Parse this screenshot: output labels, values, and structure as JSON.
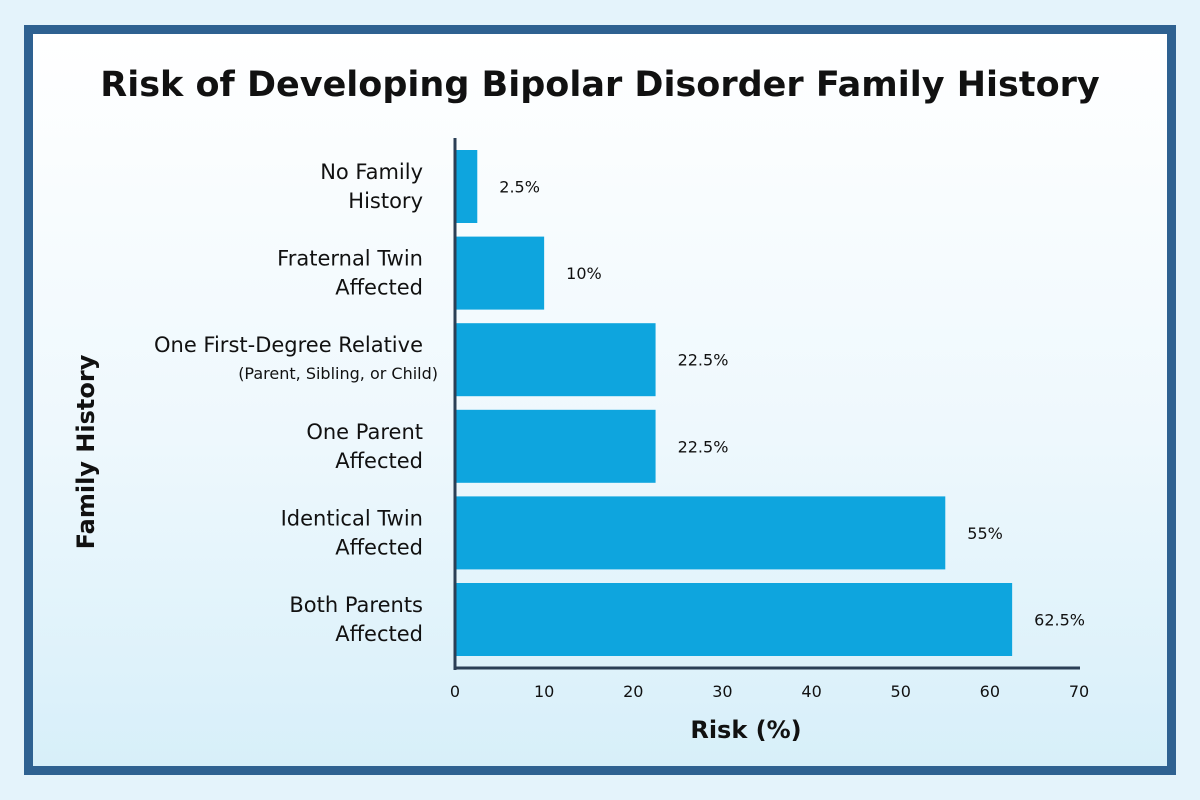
{
  "chart_data": {
    "type": "bar",
    "orientation": "horizontal",
    "title": "Risk of Developing Bipolar Disorder Family History",
    "xlabel": "Risk (%)",
    "ylabel": "Family History",
    "xlim": [
      0,
      70
    ],
    "xticks": [
      0,
      10,
      20,
      30,
      40,
      50,
      60,
      70
    ],
    "grid": false,
    "categories": [
      {
        "lines": [
          "No Family",
          "History"
        ],
        "sub": ""
      },
      {
        "lines": [
          "Fraternal Twin",
          "Affected"
        ],
        "sub": ""
      },
      {
        "lines": [
          "One First-Degree Relative"
        ],
        "sub": "(Parent, Sibling, or Child)"
      },
      {
        "lines": [
          "One Parent",
          "Affected"
        ],
        "sub": ""
      },
      {
        "lines": [
          "Identical Twin",
          "Affected"
        ],
        "sub": ""
      },
      {
        "lines": [
          "Both Parents",
          "Affected"
        ],
        "sub": ""
      }
    ],
    "values": [
      2.5,
      10,
      22.5,
      22.5,
      55,
      62.5
    ],
    "value_labels": [
      "2.5%",
      "10%",
      "22.5%",
      "22.5%",
      "55%",
      "62.5%"
    ],
    "colors": {
      "bar": "#0ea5de",
      "frame": "#2e6191",
      "axis": "#2b3f55"
    }
  }
}
